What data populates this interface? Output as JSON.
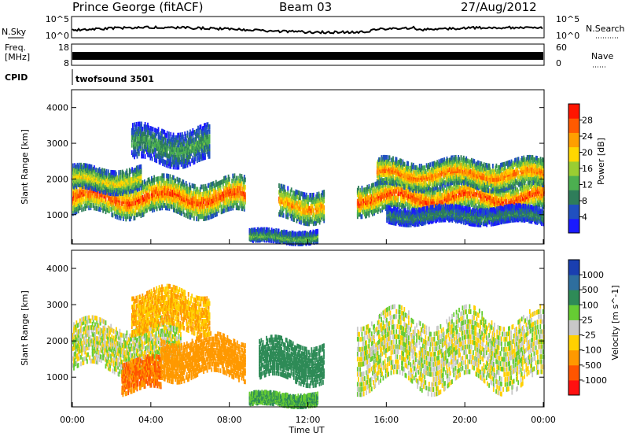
{
  "header": {
    "station": "Prince George (fitACF)",
    "beam": "Beam 03",
    "date": "27/Aug/2012"
  },
  "panels": {
    "nsky": {
      "label": "N.Sky",
      "tick_top": "10^5",
      "tick_bottom": "10^0"
    },
    "nsearch": {
      "label": "N.Search",
      "tick_top": "10^5",
      "tick_bottom": "10^0"
    },
    "freq": {
      "label_line1": "Freq.",
      "label_line2": "[MHz]",
      "tick_top": "18",
      "tick_bottom": "8"
    },
    "nave": {
      "label": "Nave",
      "tick_top": "60",
      "tick_bottom": "0"
    },
    "cpid": {
      "label": "CPID",
      "value": "twofsound 3501"
    }
  },
  "colors": {
    "power_scale": [
      "#1a1aff",
      "#2050c0",
      "#2e7d5a",
      "#4caf50",
      "#9acd32",
      "#ffd700",
      "#ff9f00",
      "#ff5a00",
      "#ff1500"
    ],
    "velocity_scale": [
      "#1a3fb0",
      "#2e6e9e",
      "#2e8b57",
      "#66cc33",
      "#c8c8c8",
      "#ffd000",
      "#ff9900",
      "#ff5500",
      "#ff1010"
    ]
  },
  "chart_data": [
    {
      "type": "heatmap",
      "title": "Power",
      "ylabel": "Slant Range [km]",
      "xlabel": "Time UT",
      "x_ticks": [
        "00:00",
        "04:00",
        "08:00",
        "12:00",
        "16:00",
        "20:00",
        "00:00"
      ],
      "y_ticks": [
        "1000",
        "2000",
        "3000",
        "4000"
      ],
      "xlim_hours": [
        0,
        24
      ],
      "ylim_km": [
        180,
        4500
      ],
      "colorbar": {
        "label": "Power [dB]",
        "ticks": [
          "4",
          "8",
          "12",
          "16",
          "20",
          "24",
          "28"
        ]
      },
      "features": [
        {
          "t_start": 0.0,
          "t_end": 8.8,
          "range_center": 1550,
          "width": 450,
          "peak_db": 28
        },
        {
          "t_start": 0.0,
          "t_end": 3.5,
          "range_center": 2050,
          "width": 300,
          "peak_db": 20
        },
        {
          "t_start": 3.0,
          "t_end": 7.0,
          "range_center": 3000,
          "width": 450,
          "peak_db": 12
        },
        {
          "t_start": 10.5,
          "t_end": 12.8,
          "range_center": 1350,
          "width": 400,
          "peak_db": 24
        },
        {
          "t_start": 9.0,
          "t_end": 12.5,
          "range_center": 450,
          "width": 150,
          "peak_db": 14
        },
        {
          "t_start": 14.5,
          "t_end": 24.0,
          "range_center": 1550,
          "width": 400,
          "peak_db": 28
        },
        {
          "t_start": 15.5,
          "t_end": 24.0,
          "range_center": 2200,
          "width": 350,
          "peak_db": 26
        },
        {
          "t_start": 16.0,
          "t_end": 24.0,
          "range_center": 1050,
          "width": 200,
          "peak_db": 10
        }
      ]
    },
    {
      "type": "heatmap",
      "title": "Velocity",
      "ylabel": "Slant Range [km]",
      "xlabel": "Time UT",
      "x_ticks": [
        "00:00",
        "04:00",
        "08:00",
        "12:00",
        "16:00",
        "20:00",
        "00:00"
      ],
      "y_ticks": [
        "1000",
        "2000",
        "3000",
        "4000"
      ],
      "xlim_hours": [
        0,
        24
      ],
      "ylim_km": [
        180,
        4500
      ],
      "colorbar": {
        "label": "Velocity [m s^-1]",
        "ticks": [
          "1000",
          "500",
          "100",
          "25",
          "-25",
          "-100",
          "-500",
          "-1000"
        ]
      },
      "features": [
        {
          "t_start": 0.0,
          "t_end": 5.5,
          "range_center": 1900,
          "width": 600,
          "velocity": 0
        },
        {
          "t_start": 2.5,
          "t_end": 4.5,
          "range_center": 1100,
          "width": 400,
          "velocity": -500
        },
        {
          "t_start": 4.5,
          "t_end": 8.8,
          "range_center": 1600,
          "width": 500,
          "velocity": -350
        },
        {
          "t_start": 9.5,
          "t_end": 12.8,
          "range_center": 1500,
          "width": 500,
          "velocity": 200
        },
        {
          "t_start": 9.0,
          "t_end": 12.5,
          "range_center": 450,
          "width": 150,
          "velocity": 100
        },
        {
          "t_start": 14.5,
          "t_end": 24.0,
          "range_center": 1800,
          "width": 900,
          "velocity": 0
        },
        {
          "t_start": 3.0,
          "t_end": 7.0,
          "range_center": 2900,
          "width": 500,
          "velocity": -100
        }
      ]
    }
  ]
}
